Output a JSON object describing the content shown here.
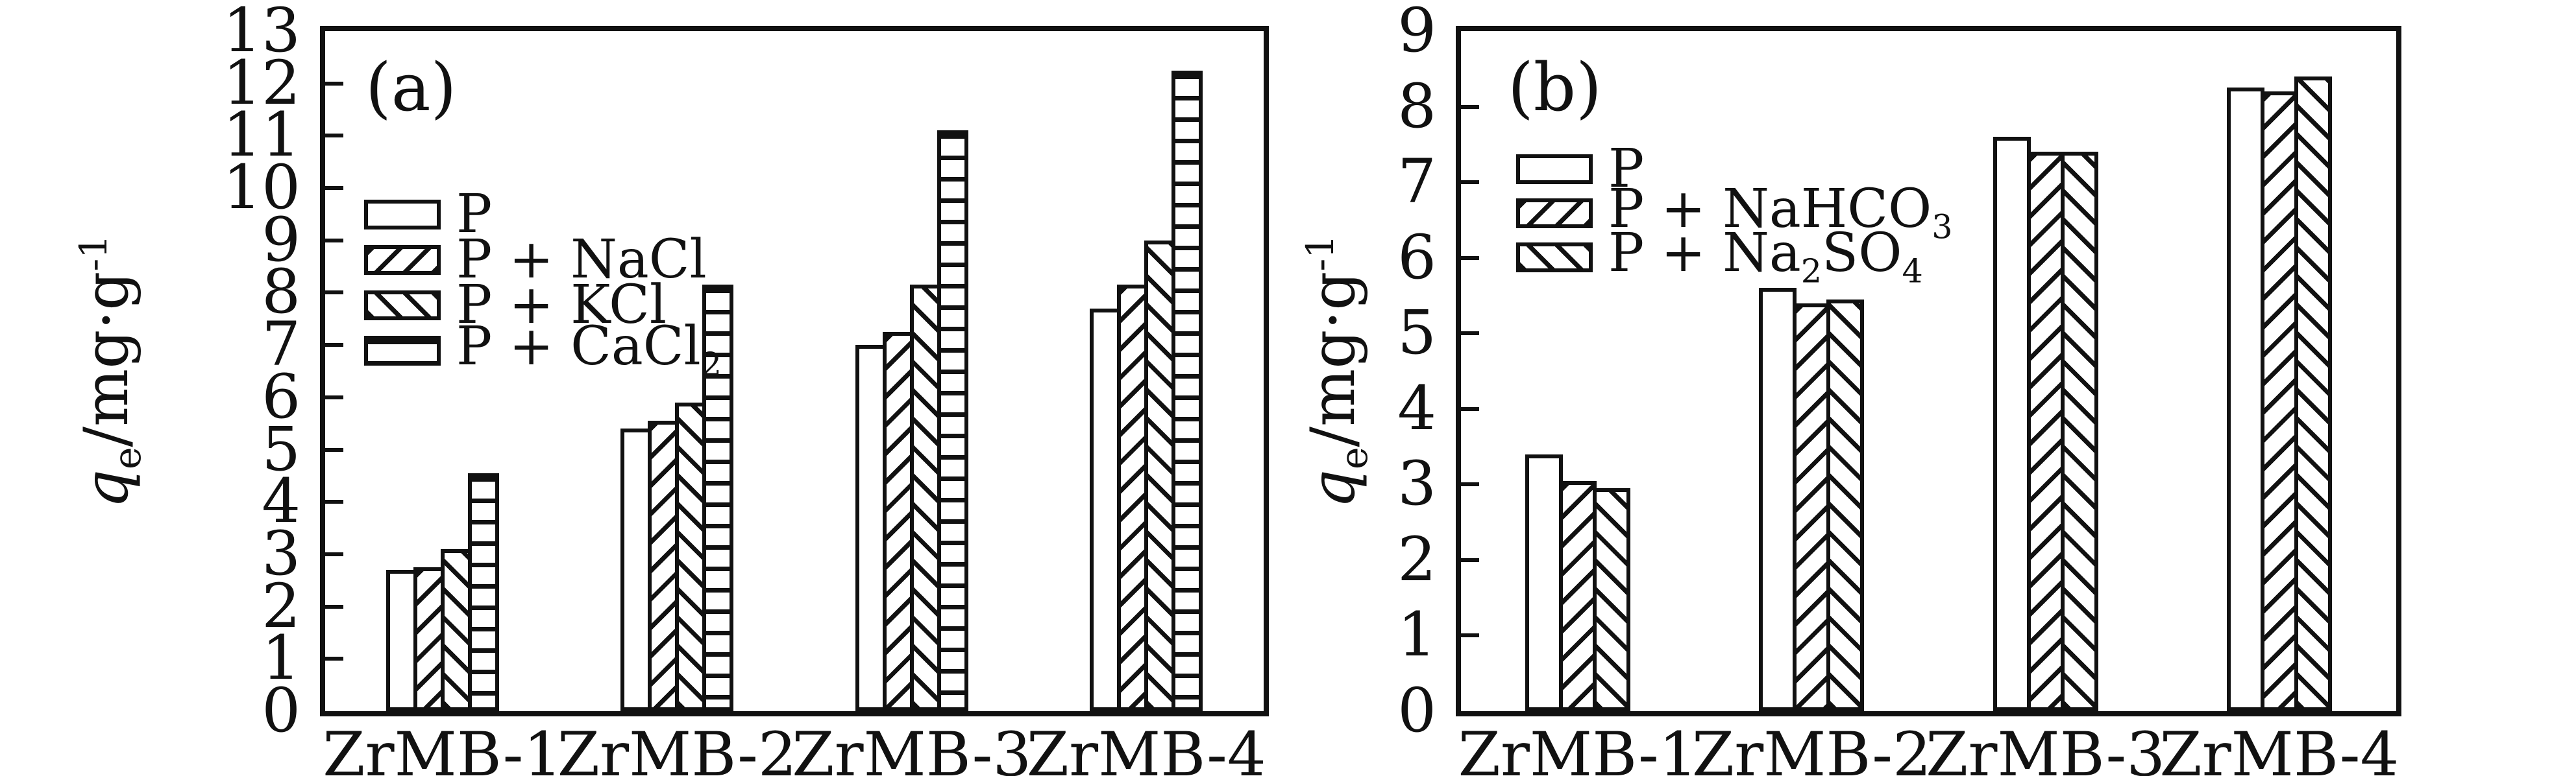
{
  "figure": {
    "background": "#ffffff",
    "ink": "#111111",
    "description": "Two-panel black-and-white bar chart figure comparing phosphate adsorption capacity of ZrMB materials with coexisting salts"
  },
  "chart_data": [
    {
      "panel": "a",
      "type": "bar",
      "panel_label": "(a)",
      "ylabel": "qe/mg·g-1",
      "ylabel_parts": {
        "var": "q",
        "var_sub": "e",
        "unit": "/mg·g",
        "unit_sup": "-1"
      },
      "ylim": [
        0,
        13
      ],
      "ytick_step": 1,
      "yticks": [
        0,
        1,
        2,
        3,
        4,
        5,
        6,
        7,
        8,
        9,
        10,
        11,
        12,
        13
      ],
      "grid": false,
      "legend_position": "upper-left-inside",
      "categories": [
        "ZrMB-1",
        "ZrMB-2",
        "ZrMB-3",
        "ZrMB-4"
      ],
      "series": [
        {
          "name": "P",
          "hatch": "none",
          "values": [
            2.7,
            5.4,
            7.0,
            7.7
          ]
        },
        {
          "name": "P + NaCl",
          "hatch": "diagonal-up",
          "values": [
            2.75,
            5.55,
            7.25,
            8.15
          ]
        },
        {
          "name": "P + KCl",
          "hatch": "diagonal-down",
          "values": [
            3.1,
            5.9,
            8.15,
            9.0
          ]
        },
        {
          "name": "P + CaCl₂",
          "hatch": "horizontal",
          "values": [
            4.55,
            8.15,
            11.1,
            12.25
          ]
        }
      ]
    },
    {
      "panel": "b",
      "type": "bar",
      "panel_label": "(b)",
      "ylabel": "qe/mg·g-1",
      "ylabel_parts": {
        "var": "q",
        "var_sub": "e",
        "unit": "/mg·g",
        "unit_sup": "-1"
      },
      "ylim": [
        0,
        9
      ],
      "ytick_step": 1,
      "yticks": [
        0,
        1,
        2,
        3,
        4,
        5,
        6,
        7,
        8,
        9
      ],
      "grid": false,
      "legend_position": "upper-left-inside",
      "categories": [
        "ZrMB-1",
        "ZrMB-2",
        "ZrMB-3",
        "ZrMB-4"
      ],
      "series": [
        {
          "name": "P",
          "hatch": "none",
          "values": [
            3.4,
            5.6,
            7.6,
            8.25
          ]
        },
        {
          "name": "P + NaHCO₃",
          "hatch": "diagonal-up",
          "values": [
            3.05,
            5.4,
            7.4,
            8.2
          ]
        },
        {
          "name": "P + Na₂SO₄",
          "hatch": "diagonal-down",
          "values": [
            2.95,
            5.45,
            7.4,
            8.4
          ]
        }
      ]
    }
  ]
}
